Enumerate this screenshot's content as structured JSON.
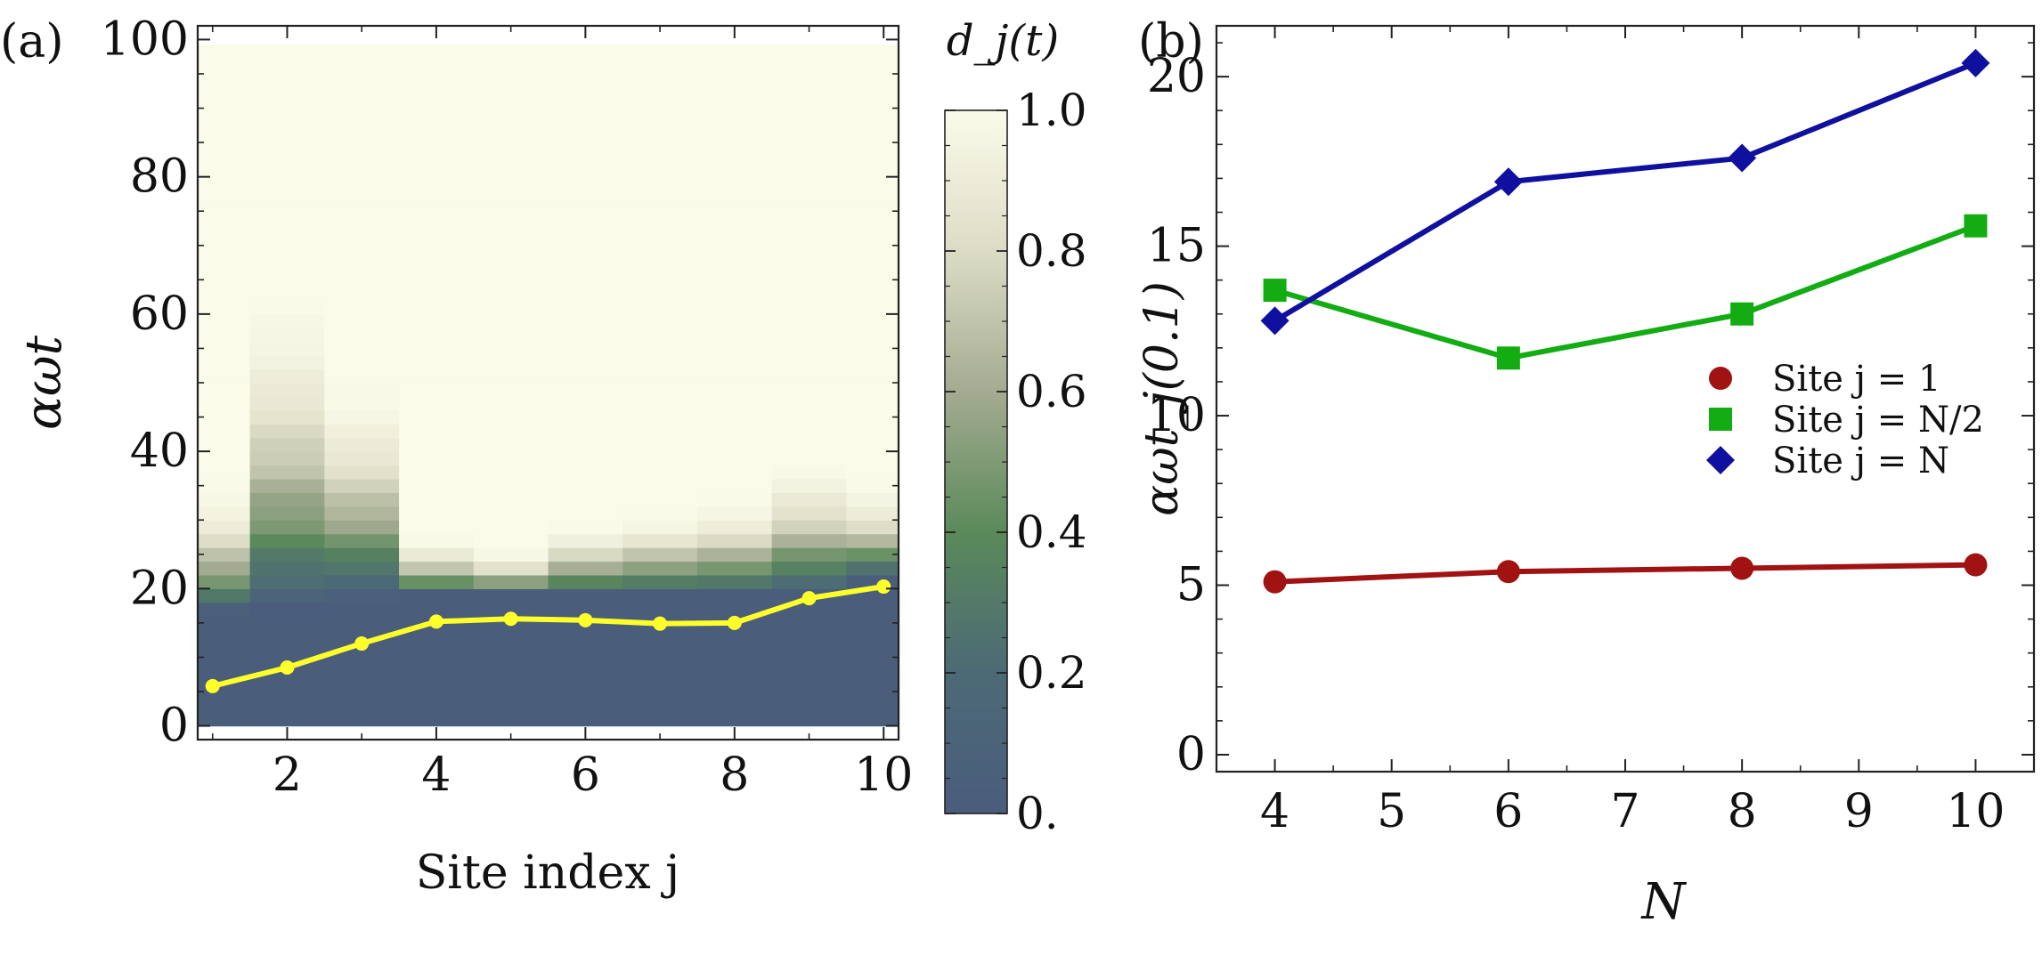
{
  "panel_labels": {
    "a": "(a)",
    "b": "(b)"
  },
  "chart_data": [
    {
      "id": "a",
      "type": "heatmap",
      "xlabel": "Site index j",
      "ylabel": "αωt",
      "xlim": [
        0.8,
        10.2
      ],
      "ylim": [
        -2,
        102
      ],
      "xticks": [
        2,
        4,
        6,
        8,
        10
      ],
      "yticks": [
        0,
        20,
        40,
        60,
        80,
        100
      ],
      "colorbar": {
        "label": "d_j(t)",
        "range": [
          0,
          1
        ],
        "ticks": [
          "0.",
          "0.2",
          "0.4",
          "0.6",
          "0.8",
          "1.0"
        ],
        "colors": [
          "#4a5d7c",
          "#4c6a76",
          "#5a8a5a",
          "#a4ab91",
          "#dcdcc6",
          "#fbfbea"
        ]
      },
      "heat_columns": [
        {
          "j": 1,
          "low_until": 16,
          "sat_at": 36
        },
        {
          "j": 2,
          "low_until": 16,
          "sat_at": 66
        },
        {
          "j": 3,
          "low_until": 18,
          "sat_at": 52
        },
        {
          "j": 4,
          "low_until": 19,
          "sat_at": 28
        },
        {
          "j": 5,
          "low_until": 19,
          "sat_at": 26
        },
        {
          "j": 6,
          "low_until": 19,
          "sat_at": 30
        },
        {
          "j": 7,
          "low_until": 19,
          "sat_at": 32
        },
        {
          "j": 8,
          "low_until": 19,
          "sat_at": 34
        },
        {
          "j": 9,
          "low_until": 19,
          "sat_at": 40
        },
        {
          "j": 10,
          "low_until": 21,
          "sat_at": 36
        }
      ],
      "line": {
        "color": "#ffff2a",
        "x": [
          1,
          2,
          3,
          4,
          5,
          6,
          7,
          8,
          9,
          10
        ],
        "y": [
          5.8,
          8.5,
          12.0,
          15.2,
          15.6,
          15.4,
          14.9,
          15.0,
          18.6,
          20.3
        ]
      }
    },
    {
      "id": "b",
      "type": "line",
      "xlabel": "N",
      "ylabel": "αωt_j(0.1)",
      "xlim": [
        3.5,
        10.5
      ],
      "ylim": [
        -0.5,
        21.5
      ],
      "xticks": [
        4,
        5,
        6,
        7,
        8,
        9,
        10
      ],
      "yticks": [
        0,
        5,
        10,
        15,
        20
      ],
      "x": [
        4,
        6,
        8,
        10
      ],
      "legend": {
        "position": "right"
      },
      "series": [
        {
          "name": "Site j = 1",
          "marker": "circle",
          "color": "#a11212",
          "values": [
            5.1,
            5.4,
            5.5,
            5.6
          ]
        },
        {
          "name": "Site j = N/2",
          "marker": "square",
          "color": "#13ac13",
          "values": [
            13.7,
            11.7,
            13.0,
            15.6
          ]
        },
        {
          "name": "Site j = N",
          "marker": "diamond",
          "color": "#0f0fa0",
          "values": [
            12.8,
            16.9,
            17.6,
            20.4
          ]
        }
      ]
    }
  ]
}
